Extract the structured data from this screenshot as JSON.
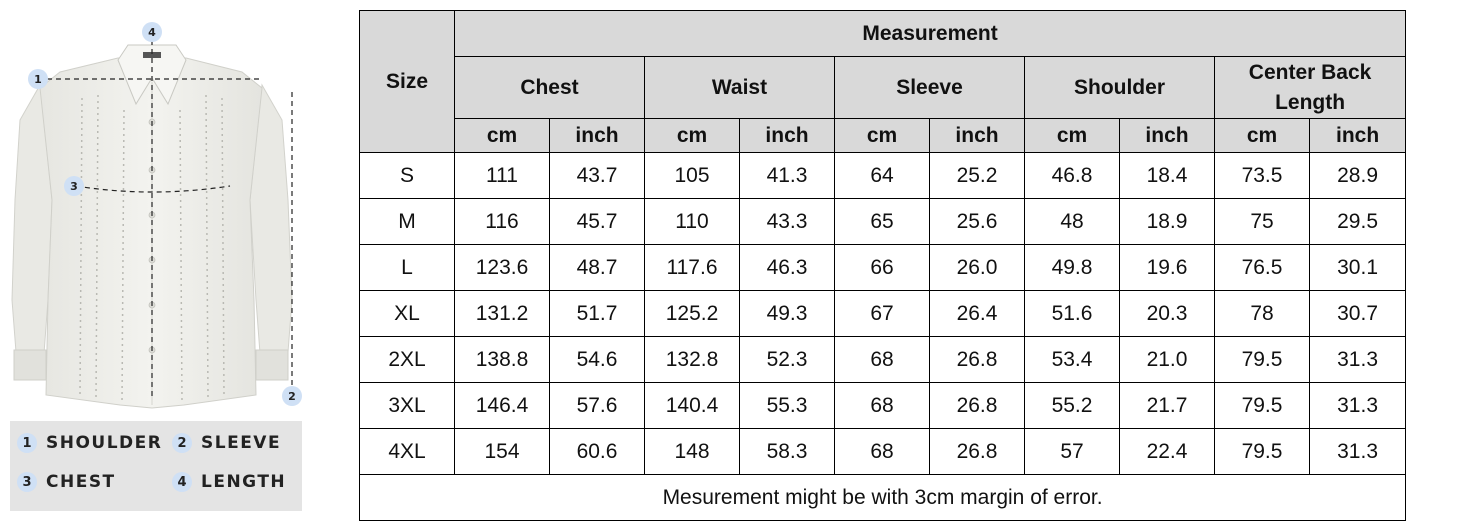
{
  "illustration": {
    "markers": [
      "1",
      "2",
      "3",
      "4"
    ]
  },
  "legend": {
    "items": [
      {
        "num": "1",
        "label": "SHOULDER"
      },
      {
        "num": "2",
        "label": "SLEEVE"
      },
      {
        "num": "3",
        "label": "CHEST"
      },
      {
        "num": "4",
        "label": "LENGTH"
      }
    ]
  },
  "table": {
    "size_header": "Size",
    "measurement_header": "Measurement",
    "groups": [
      "Chest",
      "Waist",
      "Sleeve",
      "Shoulder",
      "Center Back Length"
    ],
    "units": [
      "cm",
      "inch",
      "cm",
      "inch",
      "cm",
      "inch",
      "cm",
      "inch",
      "cm",
      "inch"
    ],
    "rows": [
      [
        "S",
        "111",
        "43.7",
        "105",
        "41.3",
        "64",
        "25.2",
        "46.8",
        "18.4",
        "73.5",
        "28.9"
      ],
      [
        "M",
        "116",
        "45.7",
        "110",
        "43.3",
        "65",
        "25.6",
        "48",
        "18.9",
        "75",
        "29.5"
      ],
      [
        "L",
        "123.6",
        "48.7",
        "117.6",
        "46.3",
        "66",
        "26.0",
        "49.8",
        "19.6",
        "76.5",
        "30.1"
      ],
      [
        "XL",
        "131.2",
        "51.7",
        "125.2",
        "49.3",
        "67",
        "26.4",
        "51.6",
        "20.3",
        "78",
        "30.7"
      ],
      [
        "2XL",
        "138.8",
        "54.6",
        "132.8",
        "52.3",
        "68",
        "26.8",
        "53.4",
        "21.0",
        "79.5",
        "31.3"
      ],
      [
        "3XL",
        "146.4",
        "57.6",
        "140.4",
        "55.3",
        "68",
        "26.8",
        "55.2",
        "21.7",
        "79.5",
        "31.3"
      ],
      [
        "4XL",
        "154",
        "60.6",
        "148",
        "58.3",
        "68",
        "26.8",
        "57",
        "22.4",
        "79.5",
        "31.3"
      ]
    ],
    "note": "Mesurement might be with 3cm margin of error."
  }
}
